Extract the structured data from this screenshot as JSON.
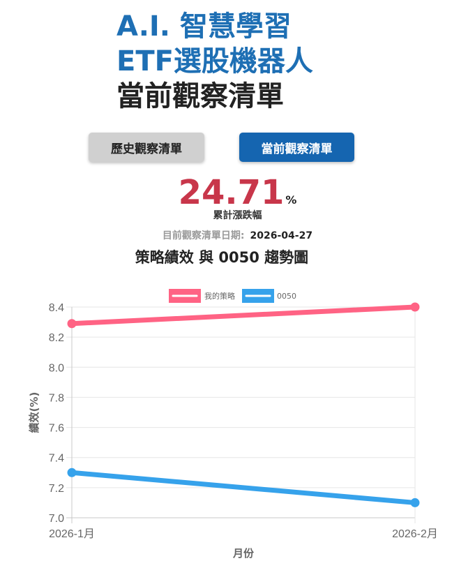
{
  "header": {
    "line1": "A.I. 智慧學習",
    "line2": "ETF選股機器人",
    "line3": "當前觀察清單"
  },
  "buttons": {
    "history": "歷史觀察清單",
    "current": "當前觀察清單"
  },
  "summary": {
    "value": "24.71",
    "unit": "%",
    "label": "累計漲跌幅",
    "date_label": "目前觀察清單日期:",
    "date_value": "2026-04-27"
  },
  "colors": {
    "accent": "#1e6fb4",
    "value": "#c8364a",
    "strategy": "#ff6384",
    "benchmark": "#36a2eb"
  },
  "chart_data": {
    "type": "line",
    "title": "策略績效 與 0050 趨勢圖",
    "categories": [
      "2026-1月",
      "2026-2月"
    ],
    "series": [
      {
        "name": "我的策略",
        "values": [
          8.29,
          8.4
        ]
      },
      {
        "name": "0050",
        "values": [
          7.3,
          7.1
        ]
      }
    ],
    "xlabel": "月份",
    "ylabel": "績效(%)",
    "ylim": [
      7.0,
      8.4
    ],
    "yticks": [
      "8.4",
      "8.2",
      "8.0",
      "7.8",
      "7.6",
      "7.4",
      "7.2",
      "7.0"
    ],
    "grid": true,
    "legend": "top-center"
  }
}
